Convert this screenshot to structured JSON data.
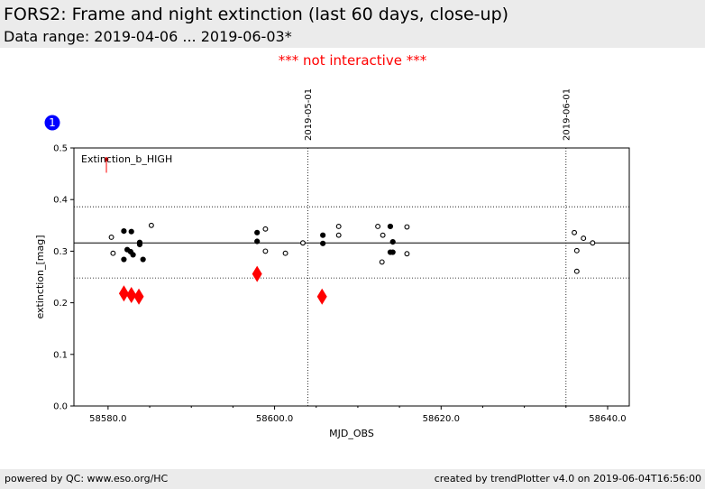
{
  "header": {
    "title": "FORS2: Frame and night extinction (last 60 days, close-up)",
    "subtitle": "Data range: 2019-04-06 ... 2019-06-03*"
  },
  "notice": "*** not interactive ***",
  "badge": "1",
  "footer": {
    "left": "powered by QC: www.eso.org/HC",
    "right": "created by trendPlotter v4.0 on 2019-06-04T16:56:00"
  },
  "colors": {
    "marker": "#000000",
    "highlight": "#ff0000",
    "badge": "#0000ff",
    "header_bg": "#ebebeb"
  },
  "chart_data": {
    "type": "scatter",
    "xlabel": "MJD_OBS",
    "ylabel": "extinction_[mag]",
    "xlim": [
      58575.9,
      58642.6
    ],
    "ylim": [
      0.0,
      0.5
    ],
    "xticks": [
      58580.0,
      58600.0,
      58620.0,
      58640.0
    ],
    "xtick_labels": [
      "58580.0",
      "58600.0",
      "58620.0",
      "58640.0"
    ],
    "yticks": [
      0.0,
      0.1,
      0.2,
      0.3,
      0.4,
      0.5
    ],
    "ytick_labels": [
      "0.0",
      "0.1",
      "0.2",
      "0.3",
      "0.4",
      "0.5"
    ],
    "annotation": "Extinction_b_HIGH",
    "reference_lines": {
      "median": 0.316,
      "upper": 0.386,
      "lower": 0.248
    },
    "date_markers": [
      {
        "x": 58604.0,
        "label": "2019-05-01"
      },
      {
        "x": 58635.0,
        "label": "2019-06-01"
      }
    ],
    "outlier_arrow": {
      "x": 58579.8,
      "y_from": 0.452,
      "y_to": 0.478
    },
    "series": [
      {
        "style": "filled",
        "points": [
          [
            58581.9,
            0.339
          ],
          [
            58582.3,
            0.303
          ],
          [
            58582.7,
            0.299
          ],
          [
            58582.8,
            0.338
          ],
          [
            58583.0,
            0.293
          ],
          [
            58581.9,
            0.284
          ],
          [
            58583.8,
            0.317
          ],
          [
            58583.8,
            0.313
          ],
          [
            58584.2,
            0.284
          ],
          [
            58597.9,
            0.336
          ],
          [
            58597.9,
            0.319
          ],
          [
            58605.8,
            0.331
          ],
          [
            58605.8,
            0.315
          ],
          [
            58613.9,
            0.348
          ],
          [
            58614.2,
            0.318
          ],
          [
            58613.9,
            0.298
          ],
          [
            58614.2,
            0.298
          ]
        ]
      },
      {
        "style": "open",
        "points": [
          [
            58580.4,
            0.327
          ],
          [
            58580.6,
            0.296
          ],
          [
            58585.2,
            0.35
          ],
          [
            58598.9,
            0.343
          ],
          [
            58598.9,
            0.3
          ],
          [
            58601.3,
            0.296
          ],
          [
            58603.4,
            0.316
          ],
          [
            58607.7,
            0.348
          ],
          [
            58607.7,
            0.331
          ],
          [
            58612.4,
            0.348
          ],
          [
            58613.0,
            0.331
          ],
          [
            58612.9,
            0.279
          ],
          [
            58615.9,
            0.347
          ],
          [
            58615.9,
            0.295
          ],
          [
            58636.0,
            0.336
          ],
          [
            58636.3,
            0.301
          ],
          [
            58636.3,
            0.261
          ],
          [
            58637.1,
            0.325
          ],
          [
            58638.2,
            0.316
          ]
        ]
      },
      {
        "style": "highlight-diamond",
        "points": [
          [
            58581.9,
            0.218
          ],
          [
            58582.8,
            0.215
          ],
          [
            58583.7,
            0.212
          ],
          [
            58597.9,
            0.256
          ],
          [
            58605.7,
            0.212
          ]
        ]
      }
    ]
  }
}
